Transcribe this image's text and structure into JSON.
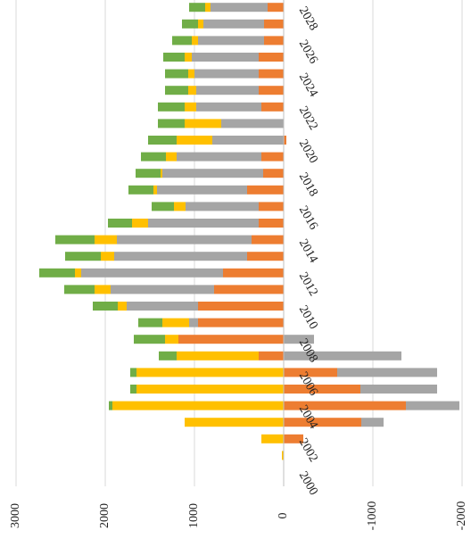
{
  "chart_data": {
    "type": "bar",
    "orientation": "horizontal",
    "stacked": true,
    "categories": [
      "2000",
      null,
      "2002",
      null,
      "2004",
      null,
      "2006",
      null,
      "2008",
      null,
      "2010",
      null,
      "2012",
      null,
      "2014",
      null,
      "2016",
      null,
      "2018",
      null,
      "2020",
      null,
      "2022",
      null,
      "2024",
      null,
      "2026",
      null,
      "2028"
    ],
    "series": [
      {
        "color": "#ed7d31",
        "values": [
          0,
          0,
          -220,
          -870,
          -1370,
          -860,
          -600,
          280,
          1180,
          960,
          960,
          780,
          680,
          410,
          360,
          280,
          280,
          410,
          230,
          250,
          -30,
          0,
          250,
          280,
          280,
          280,
          220,
          220,
          180
        ]
      },
      {
        "color": "#a5a5a5",
        "values": [
          0,
          0,
          0,
          -250,
          -600,
          -860,
          -1120,
          -1320,
          -340,
          100,
          800,
          1160,
          1590,
          1490,
          1510,
          1240,
          820,
          1010,
          1130,
          950,
          800,
          700,
          730,
          700,
          720,
          750,
          740,
          680,
          640
        ]
      },
      {
        "color": "#ffc000",
        "values": [
          0,
          20,
          250,
          1110,
          1920,
          1650,
          1650,
          920,
          150,
          300,
          100,
          180,
          70,
          150,
          250,
          180,
          130,
          40,
          20,
          120,
          400,
          410,
          130,
          90,
          70,
          80,
          70,
          60,
          60
        ]
      },
      {
        "color": "#70ad47",
        "values": [
          0,
          0,
          0,
          0,
          40,
          70,
          70,
          200,
          350,
          270,
          280,
          340,
          400,
          400,
          440,
          270,
          250,
          280,
          280,
          280,
          320,
          300,
          300,
          260,
          260,
          240,
          220,
          180,
          180
        ]
      }
    ],
    "ylim": [
      -2000,
      3000
    ],
    "yticks": [
      -2000,
      -1000,
      0,
      1000,
      2000,
      3000
    ],
    "grid": true
  }
}
